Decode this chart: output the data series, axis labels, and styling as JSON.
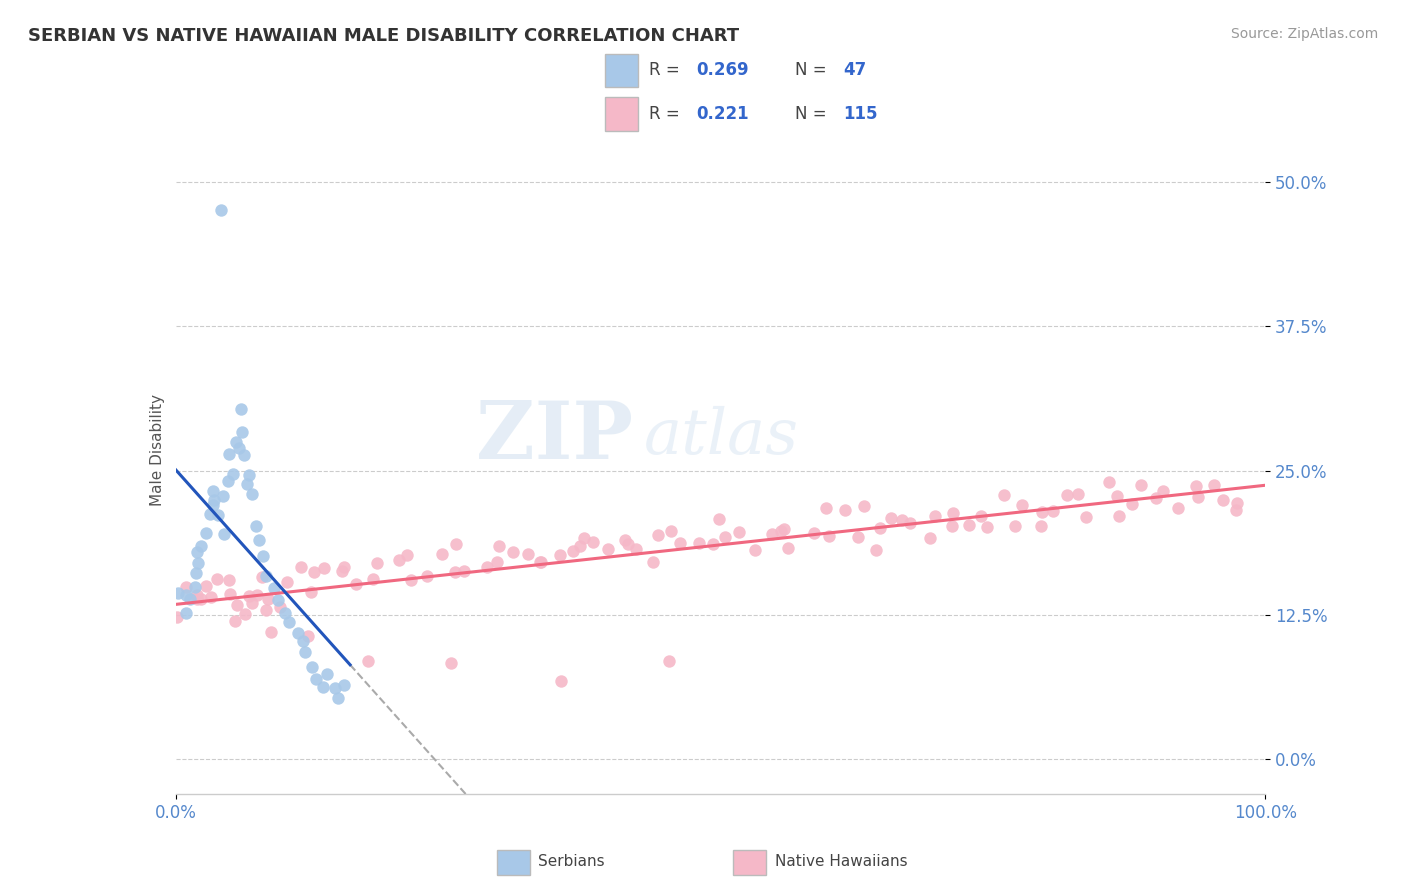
{
  "title": "SERBIAN VS NATIVE HAWAIIAN MALE DISABILITY CORRELATION CHART",
  "source": "Source: ZipAtlas.com",
  "ylabel": "Male Disability",
  "xlim": [
    0.0,
    1.0
  ],
  "ylim": [
    -0.03,
    0.565
  ],
  "yticks": [
    0.0,
    0.125,
    0.25,
    0.375,
    0.5
  ],
  "ytick_labels": [
    "0.0%",
    "12.5%",
    "25.0%",
    "37.5%",
    "50.0%"
  ],
  "xticks": [
    0.0,
    1.0
  ],
  "xtick_labels": [
    "0.0%",
    "100.0%"
  ],
  "series1_label": "Serbians",
  "series2_label": "Native Hawaiians",
  "series1_color": "#a8c8e8",
  "series2_color": "#f5b8c8",
  "series1_line_color": "#2255bb",
  "series2_line_color": "#f06880",
  "watermark_zip": "ZIP",
  "watermark_atlas": "atlas",
  "background_color": "#ffffff",
  "grid_color": "#cccccc",
  "tick_label_color": "#5588cc",
  "legend_r1": "0.269",
  "legend_n1": "47",
  "legend_r2": "0.221",
  "legend_n2": "115",
  "serbians_x": [
    0.005,
    0.008,
    0.01,
    0.012,
    0.015,
    0.018,
    0.02,
    0.022,
    0.025,
    0.028,
    0.03,
    0.032,
    0.035,
    0.038,
    0.04,
    0.042,
    0.045,
    0.048,
    0.05,
    0.052,
    0.055,
    0.058,
    0.06,
    0.062,
    0.065,
    0.068,
    0.07,
    0.072,
    0.075,
    0.08,
    0.085,
    0.09,
    0.095,
    0.1,
    0.105,
    0.11,
    0.115,
    0.12,
    0.125,
    0.13,
    0.135,
    0.14,
    0.145,
    0.15,
    0.155,
    0.04,
    0.06
  ],
  "serbians_y": [
    0.14,
    0.13,
    0.14,
    0.14,
    0.15,
    0.16,
    0.17,
    0.18,
    0.19,
    0.2,
    0.21,
    0.22,
    0.23,
    0.22,
    0.21,
    0.2,
    0.23,
    0.24,
    0.25,
    0.26,
    0.27,
    0.28,
    0.27,
    0.26,
    0.25,
    0.24,
    0.23,
    0.2,
    0.19,
    0.18,
    0.16,
    0.15,
    0.14,
    0.13,
    0.12,
    0.11,
    0.1,
    0.09,
    0.08,
    0.07,
    0.06,
    0.07,
    0.06,
    0.05,
    0.06,
    0.48,
    0.3
  ],
  "hawaiians_x": [
    0.005,
    0.01,
    0.015,
    0.02,
    0.025,
    0.03,
    0.035,
    0.04,
    0.045,
    0.05,
    0.055,
    0.06,
    0.065,
    0.07,
    0.075,
    0.08,
    0.085,
    0.09,
    0.095,
    0.1,
    0.11,
    0.12,
    0.13,
    0.14,
    0.15,
    0.16,
    0.17,
    0.18,
    0.19,
    0.2,
    0.21,
    0.22,
    0.23,
    0.24,
    0.25,
    0.26,
    0.27,
    0.28,
    0.29,
    0.3,
    0.31,
    0.32,
    0.33,
    0.34,
    0.35,
    0.36,
    0.37,
    0.38,
    0.39,
    0.4,
    0.41,
    0.42,
    0.43,
    0.44,
    0.45,
    0.46,
    0.47,
    0.48,
    0.49,
    0.5,
    0.51,
    0.52,
    0.53,
    0.54,
    0.55,
    0.56,
    0.57,
    0.58,
    0.59,
    0.6,
    0.61,
    0.62,
    0.63,
    0.64,
    0.65,
    0.66,
    0.67,
    0.68,
    0.69,
    0.7,
    0.71,
    0.72,
    0.73,
    0.74,
    0.75,
    0.76,
    0.77,
    0.78,
    0.79,
    0.8,
    0.81,
    0.82,
    0.83,
    0.84,
    0.85,
    0.86,
    0.87,
    0.88,
    0.89,
    0.9,
    0.91,
    0.92,
    0.93,
    0.94,
    0.95,
    0.96,
    0.97,
    0.98,
    0.05,
    0.08,
    0.12,
    0.18,
    0.25,
    0.35,
    0.45
  ],
  "hawaiians_y": [
    0.13,
    0.14,
    0.13,
    0.14,
    0.14,
    0.15,
    0.14,
    0.15,
    0.14,
    0.15,
    0.14,
    0.13,
    0.14,
    0.14,
    0.15,
    0.15,
    0.14,
    0.13,
    0.14,
    0.15,
    0.16,
    0.16,
    0.15,
    0.16,
    0.17,
    0.16,
    0.15,
    0.16,
    0.17,
    0.17,
    0.16,
    0.17,
    0.16,
    0.17,
    0.18,
    0.17,
    0.16,
    0.17,
    0.18,
    0.17,
    0.18,
    0.17,
    0.18,
    0.17,
    0.18,
    0.19,
    0.18,
    0.19,
    0.18,
    0.18,
    0.19,
    0.18,
    0.19,
    0.18,
    0.19,
    0.2,
    0.19,
    0.18,
    0.19,
    0.2,
    0.19,
    0.2,
    0.19,
    0.2,
    0.19,
    0.2,
    0.19,
    0.2,
    0.21,
    0.2,
    0.21,
    0.2,
    0.21,
    0.2,
    0.19,
    0.2,
    0.21,
    0.2,
    0.21,
    0.2,
    0.21,
    0.22,
    0.21,
    0.22,
    0.21,
    0.22,
    0.21,
    0.22,
    0.21,
    0.22,
    0.21,
    0.22,
    0.23,
    0.22,
    0.23,
    0.22,
    0.23,
    0.22,
    0.23,
    0.22,
    0.23,
    0.22,
    0.23,
    0.22,
    0.23,
    0.22,
    0.23,
    0.22,
    0.12,
    0.11,
    0.1,
    0.09,
    0.08,
    0.07,
    0.08
  ]
}
